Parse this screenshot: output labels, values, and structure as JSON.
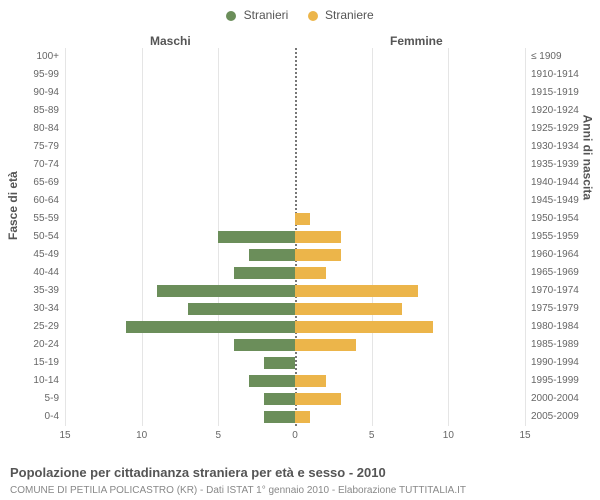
{
  "legend": {
    "male": {
      "label": "Stranieri",
      "color": "#6b8e5a"
    },
    "female": {
      "label": "Straniere",
      "color": "#ecb54a"
    }
  },
  "column_headers": {
    "left": "Maschi",
    "right": "Femmine"
  },
  "axis_titles": {
    "left": "Fasce di età",
    "right": "Anni di nascita"
  },
  "xaxis": {
    "max": 15,
    "ticks_left": [
      15,
      10,
      5,
      0
    ],
    "ticks_right": [
      0,
      5,
      10,
      15
    ]
  },
  "chart": {
    "bar_color_left": "#6b8e5a",
    "bar_color_right": "#ecb54a",
    "grid_color": "#e5e5e5",
    "center_color": "#777",
    "background": "#ffffff"
  },
  "rows": [
    {
      "age": "100+",
      "birth": "≤ 1909",
      "m": 0,
      "f": 0
    },
    {
      "age": "95-99",
      "birth": "1910-1914",
      "m": 0,
      "f": 0
    },
    {
      "age": "90-94",
      "birth": "1915-1919",
      "m": 0,
      "f": 0
    },
    {
      "age": "85-89",
      "birth": "1920-1924",
      "m": 0,
      "f": 0
    },
    {
      "age": "80-84",
      "birth": "1925-1929",
      "m": 0,
      "f": 0
    },
    {
      "age": "75-79",
      "birth": "1930-1934",
      "m": 0,
      "f": 0
    },
    {
      "age": "70-74",
      "birth": "1935-1939",
      "m": 0,
      "f": 0
    },
    {
      "age": "65-69",
      "birth": "1940-1944",
      "m": 0,
      "f": 0
    },
    {
      "age": "60-64",
      "birth": "1945-1949",
      "m": 0,
      "f": 0
    },
    {
      "age": "55-59",
      "birth": "1950-1954",
      "m": 0,
      "f": 1
    },
    {
      "age": "50-54",
      "birth": "1955-1959",
      "m": 5,
      "f": 3
    },
    {
      "age": "45-49",
      "birth": "1960-1964",
      "m": 3,
      "f": 3
    },
    {
      "age": "40-44",
      "birth": "1965-1969",
      "m": 4,
      "f": 2
    },
    {
      "age": "35-39",
      "birth": "1970-1974",
      "m": 9,
      "f": 8
    },
    {
      "age": "30-34",
      "birth": "1975-1979",
      "m": 7,
      "f": 7
    },
    {
      "age": "25-29",
      "birth": "1980-1984",
      "m": 11,
      "f": 9
    },
    {
      "age": "20-24",
      "birth": "1985-1989",
      "m": 4,
      "f": 4
    },
    {
      "age": "15-19",
      "birth": "1990-1994",
      "m": 2,
      "f": 0
    },
    {
      "age": "10-14",
      "birth": "1995-1999",
      "m": 3,
      "f": 2
    },
    {
      "age": "5-9",
      "birth": "2000-2004",
      "m": 2,
      "f": 3
    },
    {
      "age": "0-4",
      "birth": "2005-2009",
      "m": 2,
      "f": 1
    }
  ],
  "footer": {
    "title": "Popolazione per cittadinanza straniera per età e sesso - 2010",
    "sub": "COMUNE DI PETILIA POLICASTRO (KR) - Dati ISTAT 1° gennaio 2010 - Elaborazione TUTTITALIA.IT"
  }
}
